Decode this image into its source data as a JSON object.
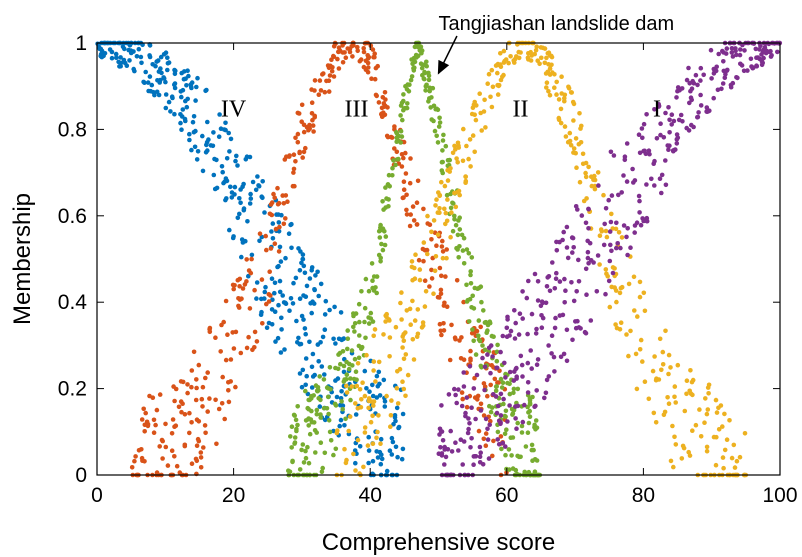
{
  "chart_data": {
    "type": "scatter",
    "xlabel": "Comprehensive score",
    "ylabel": "Membership",
    "xlim": [
      0,
      100
    ],
    "ylim": [
      0,
      1
    ],
    "x_ticks": [
      "0",
      "20",
      "40",
      "60",
      "80",
      "100"
    ],
    "y_ticks": [
      "0",
      "0.2",
      "0.4",
      "0.6",
      "0.8",
      "1"
    ],
    "grid": false,
    "annotation": {
      "text": "Tangjiashan landslide dam",
      "target": {
        "x": 50,
        "y": 0.93
      }
    },
    "series": [
      {
        "label": "IV",
        "label_position": {
          "x": 20,
          "y": 0.83
        },
        "color": "#0072BD",
        "peak_x": 0,
        "spread": 22,
        "mean_curve": [
          {
            "x": 0,
            "y": 1.0
          },
          {
            "x": 5,
            "y": 0.98
          },
          {
            "x": 10,
            "y": 0.92
          },
          {
            "x": 15,
            "y": 0.82
          },
          {
            "x": 20,
            "y": 0.67
          },
          {
            "x": 25,
            "y": 0.5
          },
          {
            "x": 30,
            "y": 0.37
          },
          {
            "x": 35,
            "y": 0.24
          },
          {
            "x": 40,
            "y": 0.12
          },
          {
            "x": 45,
            "y": 0.06
          }
        ]
      },
      {
        "label": "III",
        "label_position": {
          "x": 38,
          "y": 0.83
        },
        "color": "#D95319",
        "peak_x": 37.5,
        "spread": 17,
        "mean_curve": [
          {
            "x": 5,
            "y": 0.01
          },
          {
            "x": 15,
            "y": 0.15
          },
          {
            "x": 20,
            "y": 0.3
          },
          {
            "x": 25,
            "y": 0.5
          },
          {
            "x": 30,
            "y": 0.8
          },
          {
            "x": 35,
            "y": 0.97
          },
          {
            "x": 37.5,
            "y": 1.0
          },
          {
            "x": 40,
            "y": 0.97
          },
          {
            "x": 45,
            "y": 0.7
          },
          {
            "x": 50,
            "y": 0.45
          },
          {
            "x": 55,
            "y": 0.25
          },
          {
            "x": 60,
            "y": 0.1
          }
        ]
      },
      {
        "label": "",
        "color": "#77AC30",
        "peak_x": 47,
        "spread": 14,
        "mean_curve": [
          {
            "x": 28,
            "y": 0.02
          },
          {
            "x": 35,
            "y": 0.15
          },
          {
            "x": 40,
            "y": 0.4
          },
          {
            "x": 45,
            "y": 0.85
          },
          {
            "x": 47,
            "y": 1.0
          },
          {
            "x": 50,
            "y": 0.8
          },
          {
            "x": 55,
            "y": 0.4
          },
          {
            "x": 60,
            "y": 0.12
          },
          {
            "x": 65,
            "y": 0.02
          }
        ]
      },
      {
        "label": "II",
        "label_position": {
          "x": 62,
          "y": 0.83
        },
        "color": "#EDB120",
        "peak_x": 62.5,
        "spread": 17,
        "mean_curve": [
          {
            "x": 35,
            "y": 0.05
          },
          {
            "x": 45,
            "y": 0.3
          },
          {
            "x": 50,
            "y": 0.55
          },
          {
            "x": 55,
            "y": 0.8
          },
          {
            "x": 60,
            "y": 0.97
          },
          {
            "x": 62.5,
            "y": 1.0
          },
          {
            "x": 65,
            "y": 0.97
          },
          {
            "x": 70,
            "y": 0.8
          },
          {
            "x": 75,
            "y": 0.5
          },
          {
            "x": 80,
            "y": 0.3
          },
          {
            "x": 85,
            "y": 0.12
          },
          {
            "x": 95,
            "y": 0.01
          }
        ]
      },
      {
        "label": "I",
        "label_position": {
          "x": 82,
          "y": 0.83
        },
        "color": "#7E2F8E",
        "peak_x": 100,
        "spread": 22,
        "mean_curve": [
          {
            "x": 50,
            "y": 0.05
          },
          {
            "x": 55,
            "y": 0.12
          },
          {
            "x": 60,
            "y": 0.22
          },
          {
            "x": 65,
            "y": 0.33
          },
          {
            "x": 70,
            "y": 0.45
          },
          {
            "x": 75,
            "y": 0.58
          },
          {
            "x": 80,
            "y": 0.7
          },
          {
            "x": 85,
            "y": 0.82
          },
          {
            "x": 90,
            "y": 0.92
          },
          {
            "x": 95,
            "y": 0.98
          },
          {
            "x": 100,
            "y": 1.0
          }
        ]
      }
    ]
  }
}
